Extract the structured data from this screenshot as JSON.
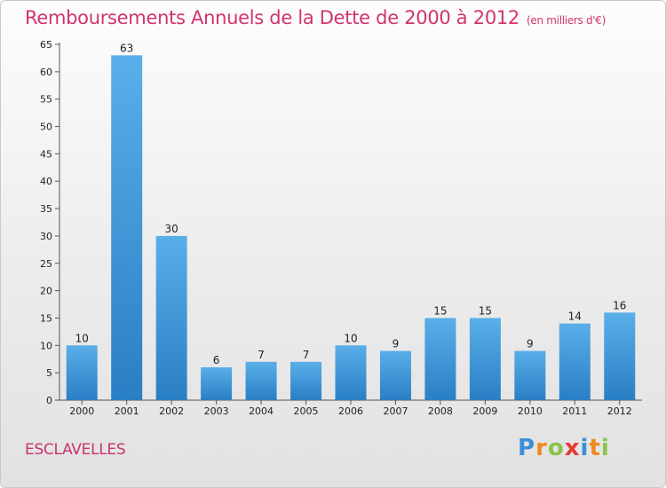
{
  "title": "Remboursements Annuels de la Dette de 2000 à 2012",
  "unit": "(en milliers d'€)",
  "town": "ESCLAVELLES",
  "logo": {
    "letters": [
      "P",
      "r",
      "o",
      "x",
      "i",
      "t",
      "i"
    ],
    "colors": [
      "#3b8fd6",
      "#f08a1c",
      "#8bc34a",
      "#e53935",
      "#3b8fd6",
      "#f08a1c",
      "#8bc34a"
    ]
  },
  "colors": {
    "bar_light": "#5aaee9",
    "bar_dark": "#2a7fc4",
    "title": "#d2336f"
  },
  "chart_data": {
    "type": "bar",
    "categories": [
      "2000",
      "2001",
      "2002",
      "2003",
      "2004",
      "2005",
      "2006",
      "2007",
      "2008",
      "2009",
      "2010",
      "2011",
      "2012"
    ],
    "values": [
      10,
      63,
      30,
      6,
      7,
      7,
      10,
      9,
      15,
      15,
      9,
      14,
      16
    ],
    "labels": [
      "10",
      "63",
      "30",
      "6",
      "7",
      "7",
      "10",
      "9",
      "15",
      "15",
      "9",
      "14",
      "16"
    ],
    "yticks": [
      "0",
      "5",
      "10",
      "15",
      "20",
      "25",
      "30",
      "35",
      "40",
      "45",
      "50",
      "55",
      "60",
      "65"
    ],
    "ylim": [
      0,
      65
    ],
    "grid": false
  }
}
